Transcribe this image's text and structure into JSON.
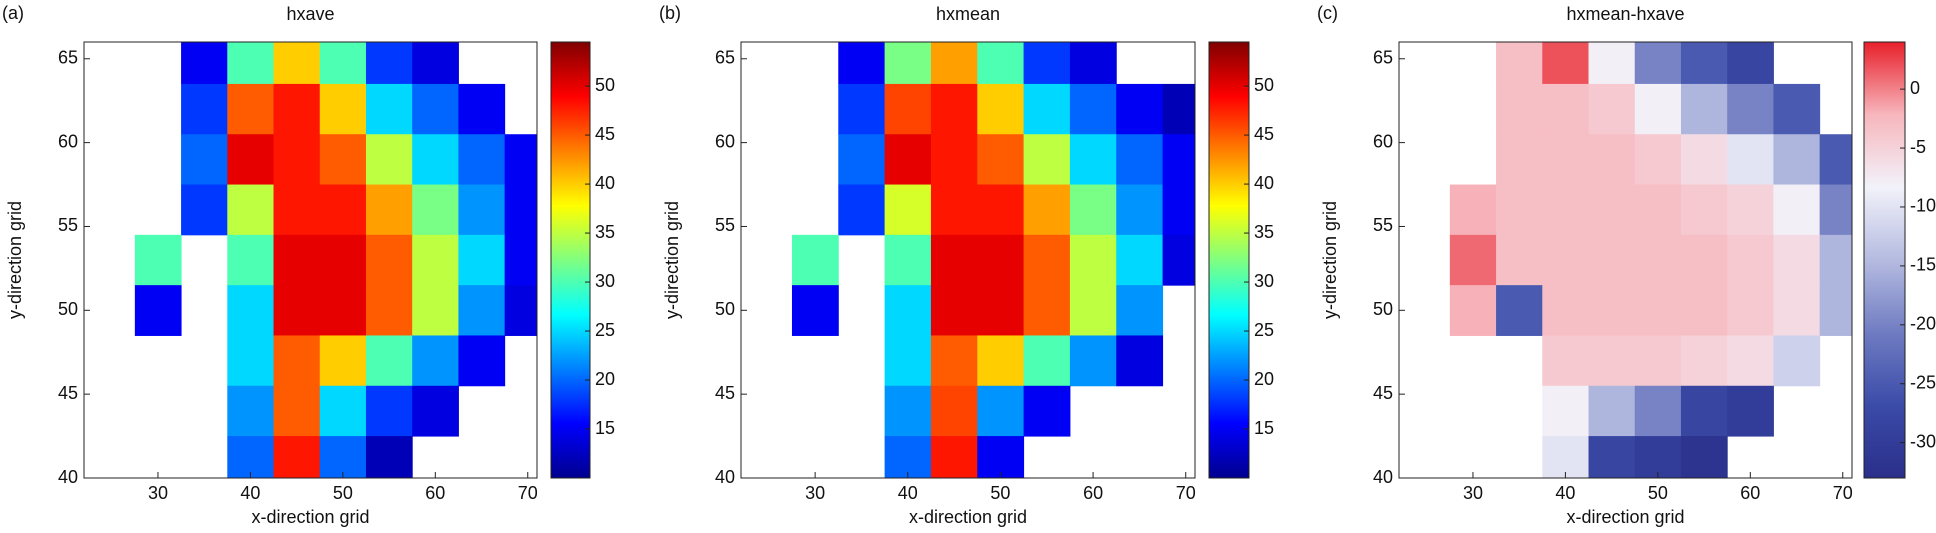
{
  "chart_data": [
    {
      "type": "heatmap",
      "annotation": "(a)",
      "title": "hxave",
      "xlabel": "x-direction grid",
      "ylabel": "y-direction grid",
      "x": [
        25,
        30,
        35,
        40,
        45,
        50,
        55,
        60,
        65,
        70
      ],
      "y": [
        65,
        62,
        59,
        56,
        53,
        50,
        47,
        44,
        41
      ],
      "z": [
        [
          null,
          null,
          15,
          30,
          40,
          30,
          18,
          14,
          null,
          null
        ],
        [
          null,
          null,
          18,
          45,
          48,
          40,
          25,
          20,
          15,
          null
        ],
        [
          null,
          null,
          20,
          50,
          48,
          45,
          35,
          25,
          20,
          15
        ],
        [
          null,
          null,
          18,
          35,
          48,
          48,
          42,
          32,
          22,
          15
        ],
        [
          null,
          30,
          null,
          30,
          50,
          50,
          45,
          35,
          25,
          15
        ],
        [
          null,
          15,
          null,
          25,
          50,
          50,
          45,
          35,
          22,
          14
        ],
        [
          null,
          null,
          null,
          25,
          45,
          40,
          30,
          22,
          15,
          null
        ],
        [
          null,
          null,
          null,
          22,
          45,
          25,
          18,
          14,
          null,
          null
        ],
        [
          null,
          null,
          null,
          20,
          48,
          20,
          12,
          null,
          null,
          null
        ]
      ],
      "xlim": [
        22,
        71
      ],
      "ylim": [
        40,
        66
      ],
      "xticks": [
        30,
        40,
        50,
        60,
        70
      ],
      "yticks": [
        40,
        45,
        50,
        55,
        60,
        65
      ],
      "clim": [
        10,
        54.5
      ],
      "cticks": [
        15,
        20,
        25,
        30,
        35,
        40,
        45,
        50
      ],
      "colormap": [
        "#00008f",
        "#0000ff",
        "#0080ff",
        "#00ffff",
        "#80ff80",
        "#ffff00",
        "#ff8000",
        "#ff0000",
        "#800000"
      ]
    },
    {
      "type": "heatmap",
      "annotation": "(b)",
      "title": "hxmean",
      "xlabel": "x-direction grid",
      "ylabel": "y-direction grid",
      "x": [
        25,
        30,
        35,
        40,
        45,
        50,
        55,
        60,
        65,
        70
      ],
      "y": [
        65,
        62,
        59,
        56,
        53,
        50,
        47,
        44,
        41
      ],
      "z": [
        [
          null,
          null,
          15,
          32,
          42,
          30,
          18,
          14,
          null,
          null
        ],
        [
          null,
          null,
          18,
          46,
          48,
          40,
          25,
          20,
          15,
          12
        ],
        [
          null,
          null,
          20,
          50,
          48,
          45,
          35,
          25,
          20,
          15
        ],
        [
          null,
          null,
          18,
          36,
          48,
          48,
          42,
          32,
          22,
          15
        ],
        [
          null,
          30,
          null,
          30,
          50,
          50,
          45,
          35,
          25,
          14
        ],
        [
          null,
          15,
          null,
          25,
          50,
          50,
          45,
          35,
          22,
          null
        ],
        [
          null,
          null,
          null,
          25,
          45,
          40,
          30,
          22,
          14,
          null
        ],
        [
          null,
          null,
          null,
          22,
          46,
          22,
          15,
          null,
          null,
          null
        ],
        [
          null,
          null,
          null,
          20,
          48,
          15,
          null,
          null,
          null,
          null
        ]
      ],
      "xlim": [
        22,
        71
      ],
      "ylim": [
        40,
        66
      ],
      "xticks": [
        30,
        40,
        50,
        60,
        70
      ],
      "yticks": [
        40,
        45,
        50,
        55,
        60,
        65
      ],
      "clim": [
        10,
        54.5
      ],
      "cticks": [
        15,
        20,
        25,
        30,
        35,
        40,
        45,
        50
      ],
      "colormap": [
        "#00008f",
        "#0000ff",
        "#0080ff",
        "#00ffff",
        "#80ff80",
        "#ffff00",
        "#ff8000",
        "#ff0000",
        "#800000"
      ]
    },
    {
      "type": "heatmap",
      "annotation": "(c)",
      "title": "hxmean-hxave",
      "xlabel": "x-direction grid",
      "ylabel": "y-direction grid",
      "x": [
        25,
        30,
        35,
        40,
        45,
        50,
        55,
        60,
        65,
        70
      ],
      "y": [
        65,
        62,
        59,
        56,
        53,
        50,
        47,
        44,
        41
      ],
      "z": [
        [
          null,
          null,
          -3,
          2,
          -8,
          -20,
          -25,
          -28,
          null,
          null
        ],
        [
          null,
          null,
          -3,
          -3,
          -4,
          -8,
          -15,
          -20,
          -25,
          null
        ],
        [
          null,
          null,
          -3,
          -3,
          -3,
          -4,
          -6,
          -10,
          -15,
          -25
        ],
        [
          null,
          -2,
          -3,
          -3,
          -3,
          -3,
          -4,
          -5,
          -8,
          -20
        ],
        [
          null,
          1,
          -3,
          -3,
          -3,
          -3,
          -3,
          -4,
          -6,
          -15
        ],
        [
          null,
          -2,
          -25,
          -3,
          -3,
          -3,
          -3,
          -4,
          -6,
          -15
        ],
        [
          null,
          null,
          null,
          -4,
          -4,
          -4,
          -5,
          -6,
          -12,
          null
        ],
        [
          null,
          null,
          null,
          -8,
          -15,
          -20,
          -28,
          -30,
          null,
          null
        ],
        [
          null,
          null,
          null,
          -10,
          -28,
          -30,
          -32,
          null,
          null,
          null
        ]
      ],
      "xlim": [
        22,
        71
      ],
      "ylim": [
        40,
        66
      ],
      "xticks": [
        30,
        40,
        50,
        60,
        70
      ],
      "yticks": [
        40,
        45,
        50,
        55,
        60,
        65
      ],
      "clim": [
        -33,
        4
      ],
      "cticks": [
        -30,
        -25,
        -20,
        -15,
        -10,
        -5,
        0
      ],
      "colormap": [
        "#2a2f8a",
        "#3b4ba8",
        "#6f7cc2",
        "#b5bbe0",
        "#f2f2fa",
        "#f7b6bd",
        "#e8202a"
      ]
    }
  ]
}
